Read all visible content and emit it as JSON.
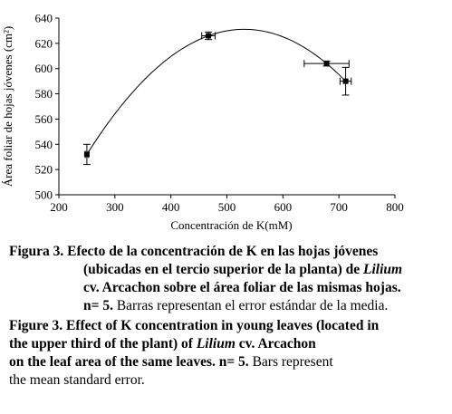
{
  "chart_data": {
    "type": "scatter",
    "xlabel": "Concentración de K(mM)",
    "ylabel": "Área foliar de hojas jóvenes (cm²)",
    "xlim": [
      200,
      800
    ],
    "ylim": [
      500,
      640
    ],
    "x_ticks": [
      "200",
      "300",
      "400",
      "500",
      "600",
      "700",
      "800"
    ],
    "y_ticks": [
      "500",
      "520",
      "540",
      "560",
      "580",
      "600",
      "620",
      "640"
    ],
    "points": [
      {
        "x": 250,
        "y": 532,
        "y_err": 8,
        "x_err": 3
      },
      {
        "x": 467,
        "y": 626,
        "y_err": 3,
        "x_err": 12
      },
      {
        "x": 678,
        "y": 604,
        "y_err": 2,
        "x_err": 40
      },
      {
        "x": 712,
        "y": 590,
        "y_err": 11,
        "x_err": 10
      }
    ],
    "fit_curve": "quadratic",
    "grid": false,
    "marker_color": "#000000"
  },
  "caption_es": {
    "label": "Figura 3.",
    "line1_rest": " Efecto de la concentración de K en las hojas jóvenes",
    "line2_a": "(ubicadas en el tercio superior de la planta) de ",
    "line2_italic": "Lilium",
    "line3": "cv. Arcachon sobre el área foliar de las mismas hojas.",
    "n_label": "n= 5.",
    "line4_rest": " Barras representan el error estándar de la media."
  },
  "caption_en": {
    "label": "Figure 3.",
    "line1_rest": " Effect of K concentration in young leaves (located in",
    "line2_a": "the upper third of the plant) of ",
    "line2_italic": "Lilium",
    "line2_b": " cv. Arcachon",
    "line3_a": "on the leaf area of the same leaves. ",
    "n_label": "n= 5.",
    "line3_b": " Bars represent",
    "line4": "the mean standard error."
  }
}
